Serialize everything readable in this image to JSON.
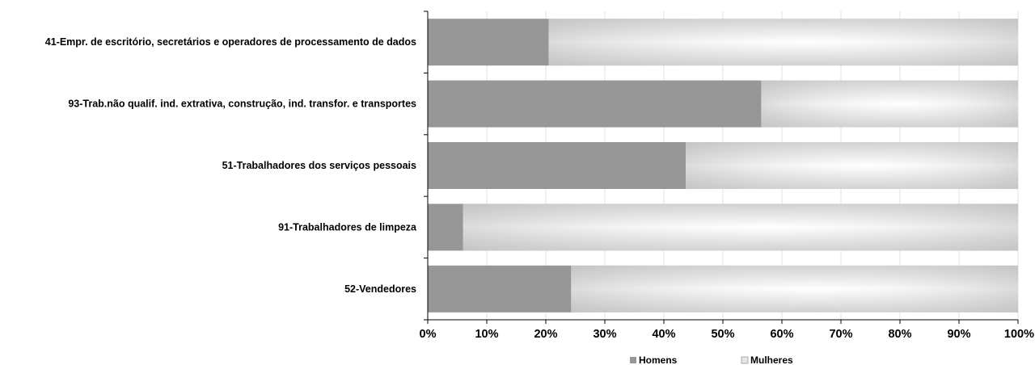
{
  "chart_data": {
    "type": "bar",
    "orientation": "horizontal",
    "stacked": "percent",
    "categories": [
      "41-Empr. de escritório, secretários e operadores de processamento de dados",
      "93-Trab.não qualif. ind. extrativa, construção, ind. transfor. e transportes",
      "51-Trabalhadores dos serviços pessoais",
      "91-Trabalhadores de limpeza",
      "52-Vendedores"
    ],
    "series": [
      {
        "name": "Homens",
        "values": [
          20.5,
          56.5,
          43.7,
          6.0,
          24.3
        ],
        "color": "#969696"
      },
      {
        "name": "Mulheres",
        "values": [
          79.5,
          43.5,
          56.3,
          94.0,
          75.7
        ],
        "color": "#c8c8c8"
      }
    ],
    "xlim": [
      0,
      100
    ],
    "x_ticks": [
      "0%",
      "10%",
      "20%",
      "30%",
      "40%",
      "50%",
      "60%",
      "70%",
      "80%",
      "90%",
      "100%"
    ],
    "grid": "vertical",
    "legend_position": "bottom"
  }
}
